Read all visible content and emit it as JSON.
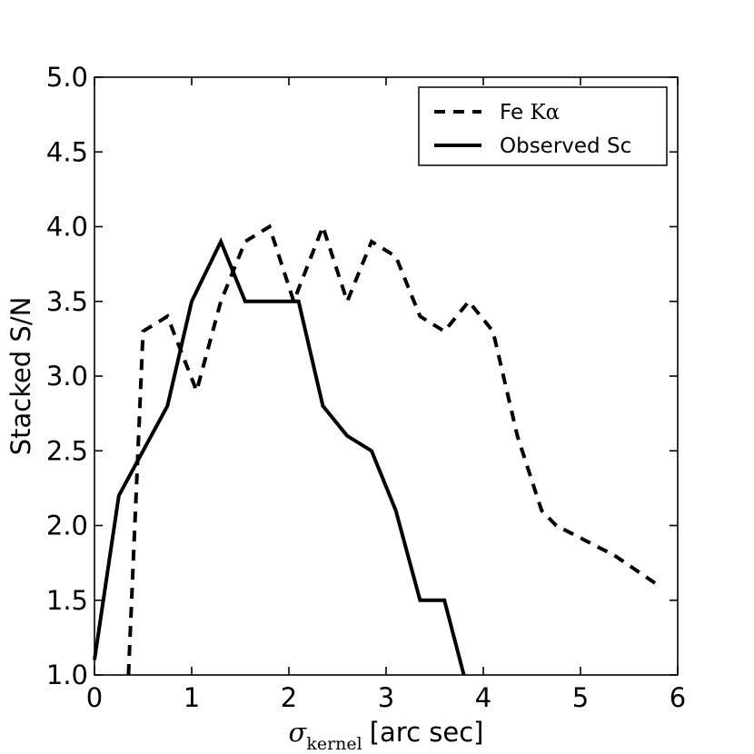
{
  "chart_data": {
    "type": "line",
    "title": "",
    "xlabel": {
      "symbol": "σ",
      "subscript": "kernel",
      "text": "[arc sec]"
    },
    "ylabel": "Stacked S/N",
    "xlim": [
      0,
      6
    ],
    "ylim": [
      1.0,
      5.0
    ],
    "xticks": [
      "0",
      "1",
      "2",
      "3",
      "4",
      "5",
      "6"
    ],
    "yticks": [
      "1.0",
      "1.5",
      "2.0",
      "2.5",
      "3.0",
      "3.5",
      "4.0",
      "4.5",
      "5.0"
    ],
    "grid": false,
    "legend_position": "top-right",
    "series": [
      {
        "name": "Fe Kα",
        "legend_prefix": "Fe ",
        "legend_greek": "Kα",
        "style": "dashed",
        "color": "#000000",
        "x": [
          0.35,
          0.5,
          0.75,
          1.05,
          1.3,
          1.55,
          1.8,
          2.05,
          2.35,
          2.6,
          2.85,
          3.1,
          3.35,
          3.6,
          3.85,
          4.1,
          4.35,
          4.6,
          4.75,
          5.05,
          5.35,
          5.8
        ],
        "y": [
          1.0,
          3.3,
          3.4,
          2.9,
          3.5,
          3.9,
          4.0,
          3.5,
          4.0,
          3.5,
          3.9,
          3.8,
          3.4,
          3.3,
          3.5,
          3.3,
          2.6,
          2.1,
          2.0,
          1.9,
          1.8,
          1.6
        ]
      },
      {
        "name": "Observed Sc",
        "style": "solid",
        "color": "#000000",
        "x": [
          0.0,
          0.25,
          0.5,
          0.75,
          1.0,
          1.3,
          1.55,
          1.8,
          2.1,
          2.35,
          2.6,
          2.85,
          3.1,
          3.35,
          3.6,
          3.8
        ],
        "y": [
          1.1,
          2.2,
          2.5,
          2.8,
          3.5,
          3.9,
          3.5,
          3.5,
          3.5,
          2.8,
          2.6,
          2.5,
          2.1,
          1.5,
          1.5,
          1.0
        ]
      }
    ]
  }
}
